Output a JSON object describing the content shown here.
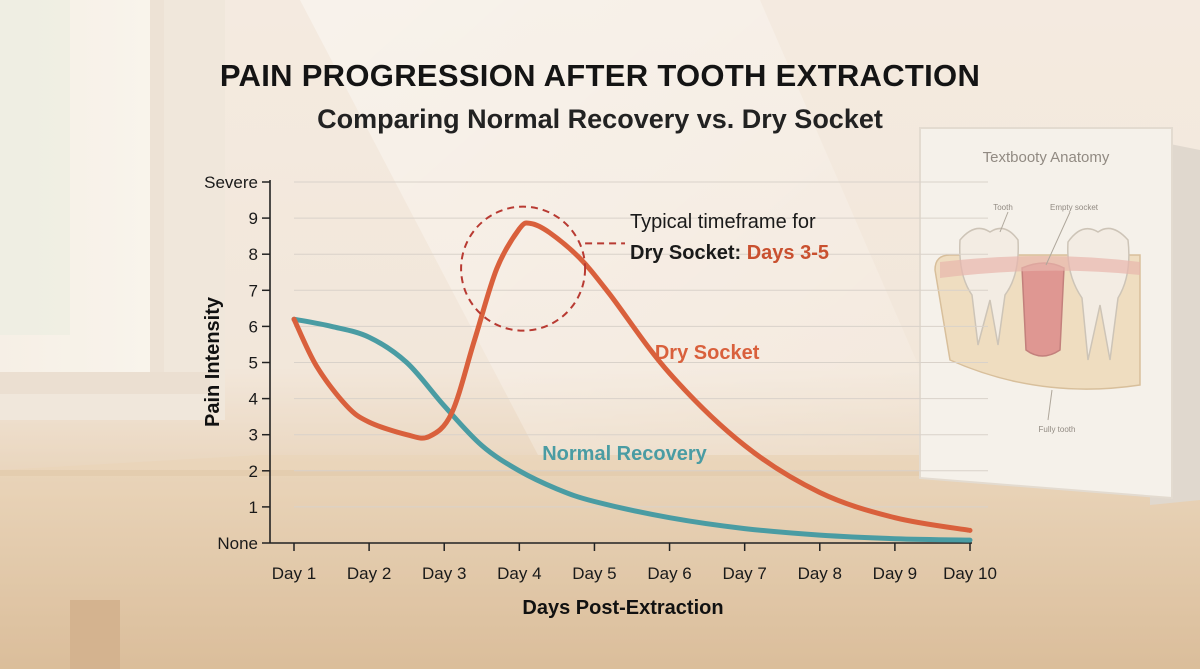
{
  "title": "PAIN PROGRESSION AFTER TOOTH EXTRACTION",
  "subtitle": "Comparing Normal Recovery vs. Dry Socket",
  "book": {
    "title": "Textbooty Anatomy",
    "labels": [
      "Tooth",
      "Empty socket",
      "Fully tooth"
    ]
  },
  "annotation": {
    "line1": "Typical timeframe for",
    "line2_prefix": "Dry Socket:",
    "line2_highlight": "Days 3-5"
  },
  "colors": {
    "normal": "#4a9ca3",
    "dry": "#d9603c",
    "highlight": "#c9502f",
    "circle": "#b83a32",
    "grid": "#d9d2ca",
    "axis": "#222222"
  },
  "chart_data": {
    "type": "line",
    "title": "PAIN PROGRESSION AFTER TOOTH EXTRACTION",
    "subtitle": "Comparing Normal Recovery vs. Dry Socket",
    "xlabel": "Days Post-Extraction",
    "ylabel": "Pain Intensity",
    "categories": [
      "Day 1",
      "Day 2",
      "Day 3",
      "Day 4",
      "Day 5",
      "Day 6",
      "Day 7",
      "Day 8",
      "Day 9",
      "Day 10"
    ],
    "y_ticks": [
      "None",
      "1",
      "2",
      "3",
      "4",
      "5",
      "6",
      "7",
      "8",
      "9",
      "Severe"
    ],
    "ylim": [
      0,
      10
    ],
    "grid": true,
    "series": [
      {
        "name": "Normal Recovery",
        "x": [
          1,
          1.5,
          2,
          2.5,
          3,
          3.5,
          4,
          4.5,
          5,
          6,
          7,
          8,
          9,
          10
        ],
        "y": [
          6.2,
          6.0,
          5.7,
          5.0,
          3.8,
          2.7,
          2.0,
          1.5,
          1.15,
          0.7,
          0.4,
          0.22,
          0.12,
          0.08
        ]
      },
      {
        "name": "Dry Socket",
        "x": [
          1,
          1.3,
          1.7,
          2,
          2.5,
          2.8,
          3.1,
          3.4,
          3.7,
          4,
          4.15,
          4.4,
          4.8,
          5.2,
          6,
          7,
          8,
          9,
          10
        ],
        "y": [
          6.2,
          4.9,
          3.8,
          3.35,
          3.0,
          2.95,
          3.6,
          5.6,
          7.6,
          8.7,
          8.85,
          8.6,
          7.9,
          6.9,
          4.7,
          2.7,
          1.4,
          0.7,
          0.35
        ]
      }
    ],
    "highlight_days": [
      3,
      5
    ]
  }
}
